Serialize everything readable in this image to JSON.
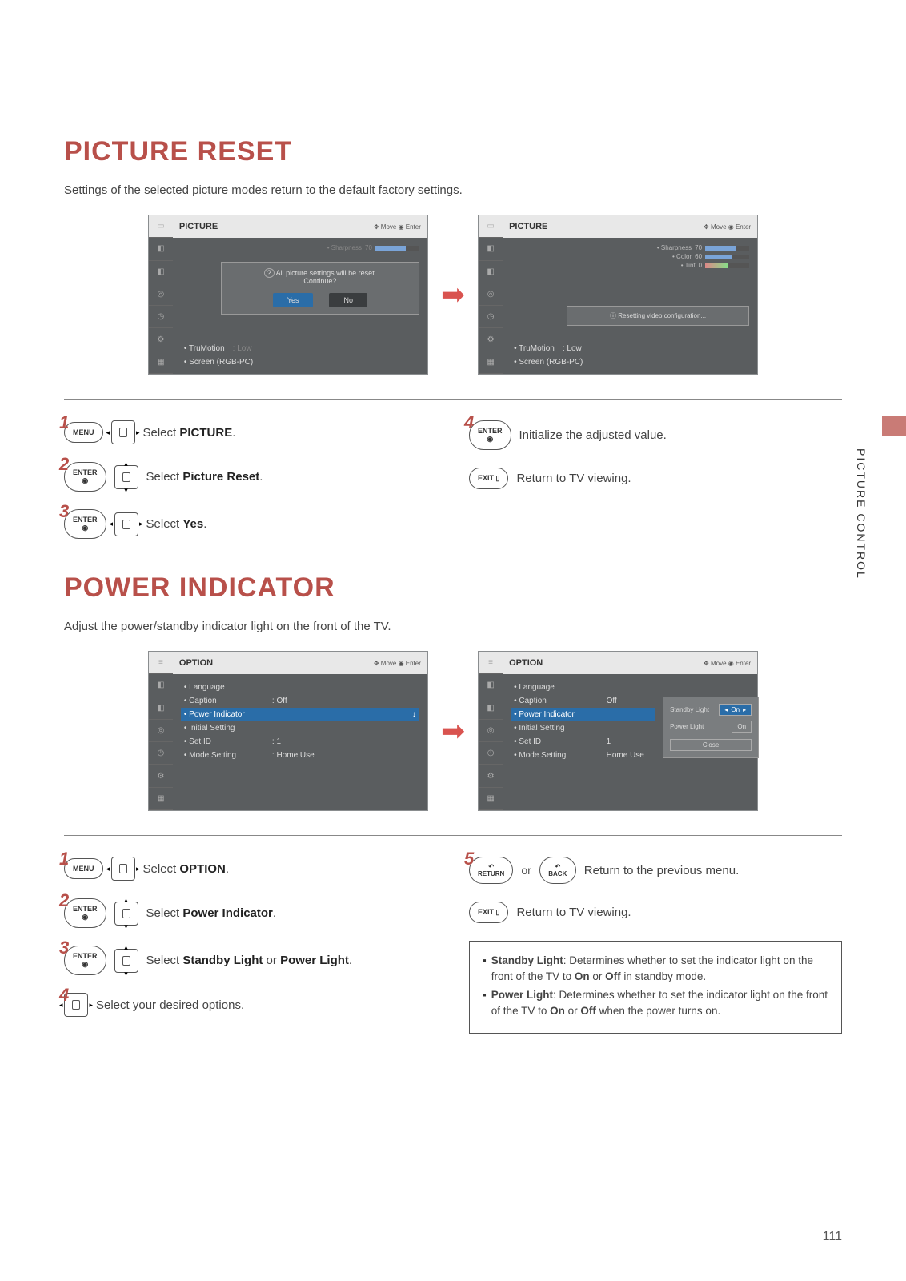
{
  "page": {
    "side_label": "PICTURE CONTROL",
    "page_number": "111"
  },
  "section1": {
    "title": "PICTURE RESET",
    "intro": "Settings of the selected picture modes return to the default factory settings.",
    "osd_left": {
      "header": "PICTURE",
      "header_hint": "✥ Move  ◉ Enter",
      "sharpness_label": "• Sharpness",
      "sharpness_val": "70",
      "dialog_icon": "?",
      "dialog_text": "All picture settings will be reset.\nContinue?",
      "btn_yes": "Yes",
      "btn_no": "No",
      "trumotion": "• TruMotion",
      "trumotion_val": ": Low",
      "screen": "• Screen (RGB-PC)"
    },
    "osd_right": {
      "header": "PICTURE",
      "header_hint": "✥ Move  ◉ Enter",
      "rows": [
        {
          "label": "• Sharpness",
          "val": "70",
          "fill": 70
        },
        {
          "label": "• Color",
          "val": "60",
          "fill": 60
        },
        {
          "label": "• Tint",
          "val": "0",
          "fill": 50,
          "rg": true
        }
      ],
      "info_icon": "ⓘ",
      "info_text": "Resetting video configuration...",
      "trumotion": "• TruMotion",
      "trumotion_val": ": Low",
      "screen": "• Screen (RGB-PC)"
    },
    "steps": {
      "s1_btn": "MENU",
      "s1_text_a": "Select ",
      "s1_text_b": "PICTURE",
      "s1_text_c": ".",
      "s2_btn": "ENTER\n◉",
      "s2_text_a": "Select ",
      "s2_text_b": "Picture Reset",
      "s2_text_c": ".",
      "s3_btn": "ENTER\n◉",
      "s3_text_a": "Select ",
      "s3_text_b": "Yes",
      "s3_text_c": ".",
      "s4_btn": "ENTER\n◉",
      "s4_text": "Initialize the adjusted value.",
      "s5_btn": "EXIT ▯",
      "s5_text": "Return to TV viewing."
    }
  },
  "section2": {
    "title": "POWER INDICATOR",
    "intro": "Adjust the power/standby indicator light on the front of the TV.",
    "osd_left": {
      "header": "OPTION",
      "header_hint": "✥ Move  ◉ Enter",
      "items": [
        {
          "label": "• Language",
          "val": ""
        },
        {
          "label": "• Caption",
          "val": ": Off"
        },
        {
          "label": "• Power Indicator",
          "val": "",
          "selected": true,
          "icon": "↕"
        },
        {
          "label": "• Initial Setting",
          "val": ""
        },
        {
          "label": "• Set ID",
          "val": ": 1"
        },
        {
          "label": "• Mode Setting",
          "val": ": Home Use"
        }
      ]
    },
    "osd_right": {
      "header": "OPTION",
      "header_hint": "✥ Move  ◉ Enter",
      "items": [
        {
          "label": "• Language",
          "val": ""
        },
        {
          "label": "• Caption",
          "val": ": Off"
        },
        {
          "label": "• Power Indicator",
          "val": "",
          "selected": true
        },
        {
          "label": "• Initial Setting",
          "val": ""
        },
        {
          "label": "• Set ID",
          "val": ": 1"
        },
        {
          "label": "• Mode Setting",
          "val": ": Home Use"
        }
      ],
      "side": {
        "standby": "Standby Light",
        "standby_val": "On",
        "power": "Power Light",
        "power_val": "On",
        "close": "Close"
      }
    },
    "steps": {
      "s1_btn": "MENU",
      "s1_text_a": "Select ",
      "s1_text_b": "OPTION",
      "s1_text_c": ".",
      "s2_btn": "ENTER\n◉",
      "s2_text_a": "Select ",
      "s2_text_b": "Power Indicator",
      "s2_text_c": ".",
      "s3_btn": "ENTER\n◉",
      "s3_text_a": "Select ",
      "s3_text_b": "Standby Light",
      "s3_text_c": " or ",
      "s3_text_d": "Power Light",
      "s3_text_e": ".",
      "s4_text": "Select your desired options.",
      "s5_btn1": "↶\nRETURN",
      "s5_or": "or",
      "s5_btn2": "↶\nBACK",
      "s5_text": "Return to the previous menu.",
      "s6_btn": "EXIT ▯",
      "s6_text": "Return to TV viewing."
    },
    "infobox": {
      "i1_b": "Standby Light",
      "i1_t": ": Determines whether to set the indicator light on the front of the TV to ",
      "i1_on": "On",
      "i1_mid": " or ",
      "i1_off": "Off",
      "i1_end": " in standby mode.",
      "i2_b": "Power Light",
      "i2_t": ": Determines whether to set the indicator light on the front of the TV to ",
      "i2_on": "On",
      "i2_mid": " or ",
      "i2_off": "Off",
      "i2_end": " when the power turns on."
    }
  }
}
